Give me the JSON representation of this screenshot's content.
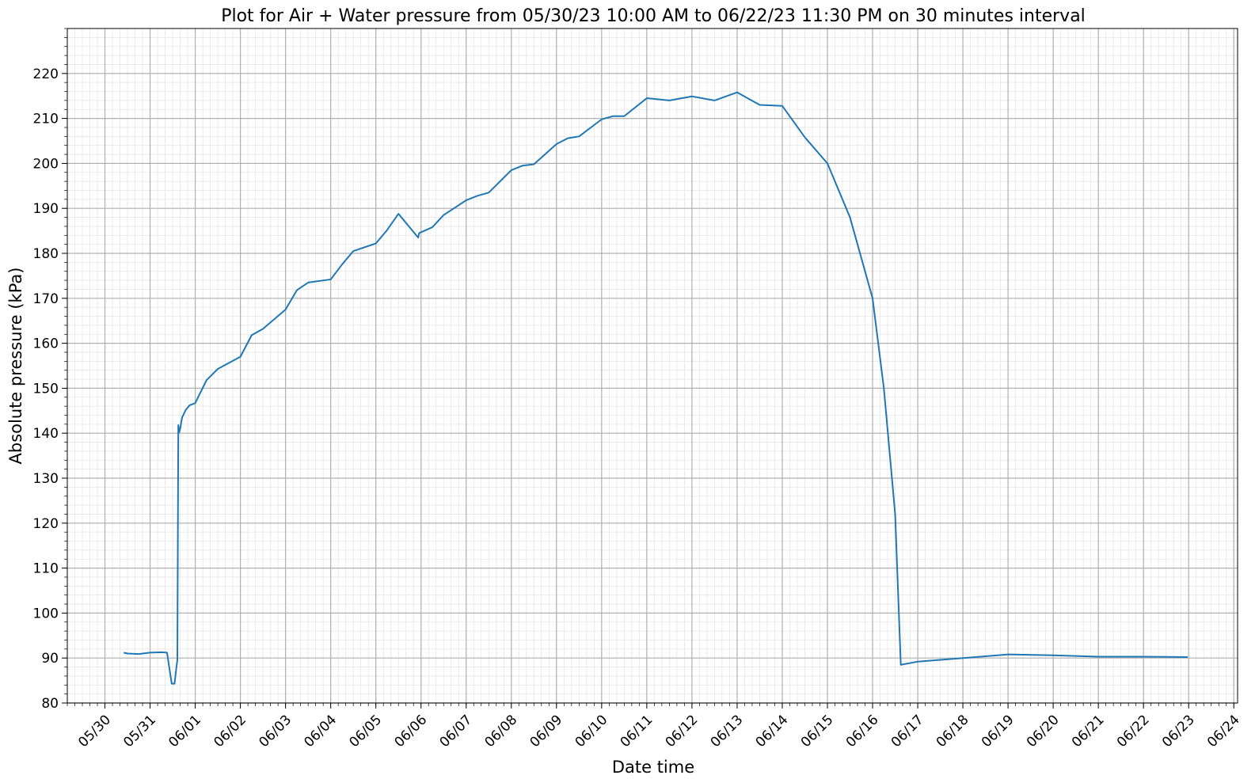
{
  "chart_data": {
    "type": "line",
    "title": "Plot for Air + Water pressure from 05/30/23 10:00 AM to 06/22/23 11:30 PM on 30 minutes interval",
    "xlabel": "Date time",
    "ylabel": "Absolute pressure (kPa)",
    "x_axis": "dates",
    "xlim": [
      "2023-05-29T04:00",
      "2023-06-24T02:00"
    ],
    "ylim": [
      80,
      230
    ],
    "y_ticks": [
      80,
      90,
      100,
      110,
      120,
      130,
      140,
      150,
      160,
      170,
      180,
      190,
      200,
      210,
      220
    ],
    "x_ticks": [
      "05/30",
      "05/31",
      "06/01",
      "06/02",
      "06/03",
      "06/04",
      "06/05",
      "06/06",
      "06/07",
      "06/08",
      "06/09",
      "06/10",
      "06/11",
      "06/12",
      "06/13",
      "06/14",
      "06/15",
      "06/16",
      "06/17",
      "06/18",
      "06/19",
      "06/20",
      "06/21",
      "06/22",
      "06/23",
      "06/24"
    ],
    "grid": true,
    "minor_grid": true,
    "legend": "none",
    "color": "#1f77b4",
    "series": [
      {
        "x": [
          "2023-05-30T10:00",
          "2023-05-30T12:00",
          "2023-05-30T18:00",
          "2023-05-31T00:00",
          "2023-05-31T06:00",
          "2023-05-31T09:00",
          "2023-05-31T11:30",
          "2023-05-31T12:00",
          "2023-05-31T13:00",
          "2023-05-31T14:00",
          "2023-05-31T14:30",
          "2023-05-31T15:00",
          "2023-05-31T15:30",
          "2023-05-31T16:00",
          "2023-05-31T17:00",
          "2023-05-31T19:00",
          "2023-05-31T21:00",
          "2023-06-01T00:00",
          "2023-06-01T06:00",
          "2023-06-01T12:00",
          "2023-06-02T00:00",
          "2023-06-02T06:00",
          "2023-06-02T12:00",
          "2023-06-03T00:00",
          "2023-06-03T06:00",
          "2023-06-03T12:00",
          "2023-06-04T00:00",
          "2023-06-04T06:00",
          "2023-06-04T12:00",
          "2023-06-05T00:00",
          "2023-06-05T06:00",
          "2023-06-05T12:00",
          "2023-06-05T22:30",
          "2023-06-05T23:00",
          "2023-06-06T06:00",
          "2023-06-06T12:00",
          "2023-06-07T00:00",
          "2023-06-07T06:00",
          "2023-06-07T12:00",
          "2023-06-08T00:00",
          "2023-06-08T06:00",
          "2023-06-08T12:00",
          "2023-06-09T00:00",
          "2023-06-09T06:00",
          "2023-06-09T12:00",
          "2023-06-10T00:00",
          "2023-06-10T06:00",
          "2023-06-10T12:00",
          "2023-06-11T00:00",
          "2023-06-11T12:00",
          "2023-06-12T00:00",
          "2023-06-12T12:00",
          "2023-06-13T00:00",
          "2023-06-13T12:00",
          "2023-06-14T00:00",
          "2023-06-14T12:00",
          "2023-06-15T00:00",
          "2023-06-15T12:00",
          "2023-06-16T00:00",
          "2023-06-16T06:00",
          "2023-06-16T12:00",
          "2023-06-16T15:00",
          "2023-06-17T00:00",
          "2023-06-18T00:00",
          "2023-06-19T00:00",
          "2023-06-20T00:00",
          "2023-06-21T00:00",
          "2023-06-22T00:00",
          "2023-06-22T23:30"
        ],
        "y": [
          91.2,
          91.0,
          90.9,
          91.2,
          91.3,
          91.2,
          84.3,
          84.3,
          84.3,
          88.0,
          89.5,
          141.8,
          140.2,
          141.0,
          143.5,
          145.2,
          146.2,
          146.7,
          151.8,
          154.3,
          157.0,
          161.8,
          163.2,
          167.5,
          171.8,
          173.5,
          174.2,
          177.5,
          180.5,
          182.2,
          185.2,
          188.8,
          183.5,
          184.5,
          185.8,
          188.5,
          191.8,
          192.8,
          193.5,
          198.5,
          199.5,
          199.8,
          204.3,
          205.6,
          206.0,
          209.8,
          210.5,
          210.5,
          214.5,
          214.0,
          214.9,
          214.0,
          215.8,
          213.0,
          212.8,
          205.8,
          200.0,
          188.0,
          170.0,
          150.0,
          122.0,
          88.5,
          89.2,
          90.0,
          90.8,
          90.6,
          90.3,
          90.3,
          90.2
        ]
      }
    ]
  }
}
